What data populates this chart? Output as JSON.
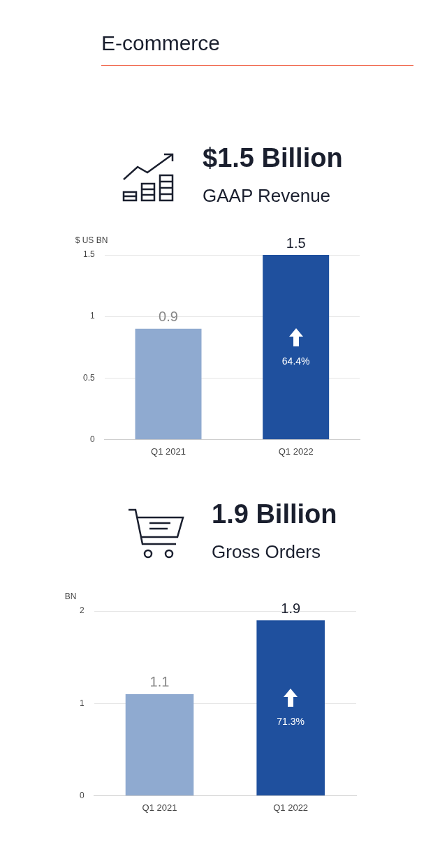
{
  "chart_data": [
    {
      "type": "other",
      "title": "E-commerce"
    },
    {
      "type": "bar",
      "title": "$1.5 Billion",
      "subtitle": "GAAP Revenue",
      "ylabel": "$ US BN",
      "categories": [
        "Q1 2021",
        "Q1 2022"
      ],
      "values": [
        0.9,
        1.5
      ],
      "colors": [
        "#8faad0",
        "#1f509e"
      ],
      "ylim": [
        0,
        1.5
      ],
      "yticks": [
        0,
        0.5,
        1,
        1.5
      ],
      "grid": "y",
      "data_labels": true,
      "legend": false,
      "annotations": [
        "64.4%"
      ]
    },
    {
      "type": "bar",
      "title": "1.9 Billion",
      "subtitle": "Gross Orders",
      "ylabel": "BN",
      "categories": [
        "Q1 2021",
        "Q1 2022"
      ],
      "values": [
        1.1,
        1.9
      ],
      "colors": [
        "#8faad0",
        "#1f509e"
      ],
      "ylim": [
        0,
        2
      ],
      "yticks": [
        0,
        1,
        2
      ],
      "grid": "y",
      "data_labels": true,
      "legend": false,
      "annotations": [
        "71.3%"
      ]
    }
  ]
}
